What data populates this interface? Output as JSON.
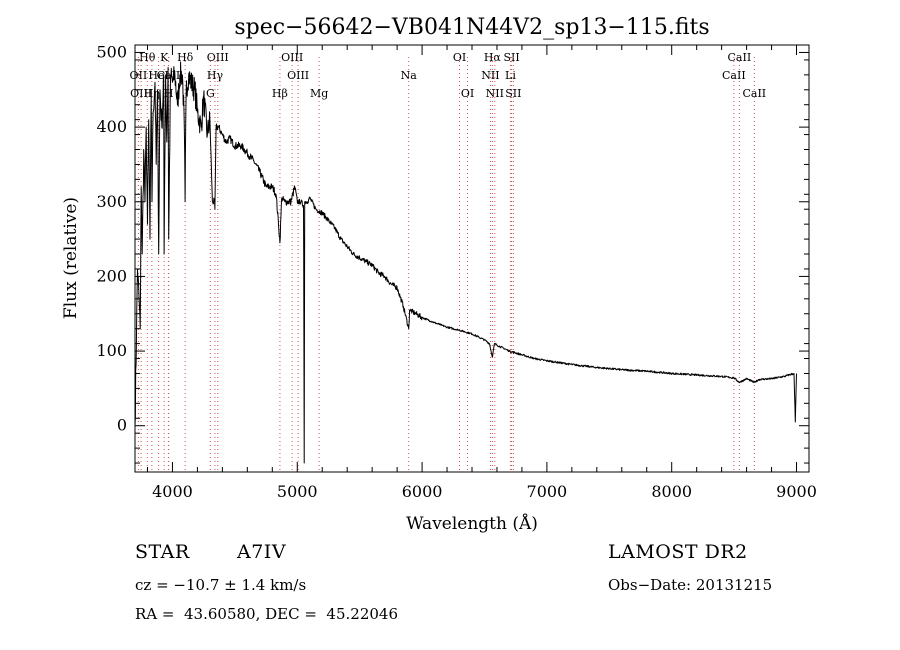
{
  "chart_data": {
    "type": "line",
    "title": "spec−56642−VB041N44V2_sp13−115.fits",
    "xlabel": "Wavelength (Å)",
    "ylabel": "Flux (relative)",
    "xlim": [
      3700,
      9100
    ],
    "ylim": [
      -62,
      510
    ],
    "x_ticks": [
      4000,
      5000,
      6000,
      7000,
      8000,
      9000
    ],
    "y_ticks": [
      0,
      100,
      200,
      300,
      400,
      500
    ],
    "grid": false,
    "series": [
      {
        "name": "spectrum",
        "x": [
          3700,
          3720,
          3735,
          3742,
          3750,
          3758,
          3770,
          3780,
          3790,
          3800,
          3810,
          3820,
          3830,
          3836,
          3845,
          3860,
          3870,
          3880,
          3890,
          3900,
          3915,
          3930,
          3933,
          3945,
          3955,
          3965,
          3970,
          3985,
          4000,
          4020,
          4040,
          4060,
          4080,
          4095,
          4101,
          4110,
          4130,
          4150,
          4180,
          4200,
          4230,
          4250,
          4280,
          4300,
          4320,
          4335,
          4340,
          4350,
          4370,
          4400,
          4430,
          4460,
          4500,
          4550,
          4600,
          4650,
          4700,
          4750,
          4800,
          4830,
          4850,
          4861,
          4875,
          4900,
          4950,
          4980,
          5000,
          5030,
          5050,
          5052,
          5056,
          5060,
          5080,
          5100,
          5150,
          5200,
          5250,
          5300,
          5350,
          5400,
          5450,
          5500,
          5550,
          5600,
          5650,
          5700,
          5750,
          5800,
          5850,
          5893,
          5900,
          5950,
          6000,
          6100,
          6200,
          6300,
          6400,
          6500,
          6540,
          6563,
          6580,
          6600,
          6700,
          6800,
          6900,
          7000,
          7200,
          7400,
          7600,
          7800,
          8000,
          8200,
          8400,
          8500,
          8542,
          8600,
          8662,
          8700,
          8800,
          8900,
          8980,
          8990,
          9000
        ],
        "values": [
          0,
          210,
          160,
          130,
          320,
          230,
          370,
          300,
          400,
          270,
          410,
          250,
          440,
          300,
          420,
          460,
          350,
          450,
          230,
          450,
          400,
          470,
          230,
          470,
          380,
          480,
          250,
          470,
          460,
          470,
          430,
          470,
          470,
          400,
          300,
          450,
          470,
          460,
          450,
          420,
          400,
          440,
          390,
          410,
          300,
          300,
          290,
          400,
          400,
          390,
          380,
          385,
          375,
          375,
          365,
          355,
          340,
          320,
          320,
          310,
          270,
          245,
          305,
          300,
          300,
          320,
          300,
          300,
          295,
          230,
          -50,
          300,
          300,
          305,
          290,
          285,
          275,
          265,
          250,
          240,
          230,
          225,
          220,
          215,
          205,
          200,
          190,
          185,
          160,
          130,
          155,
          150,
          145,
          138,
          132,
          128,
          123,
          115,
          110,
          92,
          110,
          108,
          100,
          95,
          90,
          87,
          82,
          78,
          75,
          73,
          70,
          68,
          66,
          64,
          58,
          63,
          58,
          62,
          63,
          66,
          70,
          5,
          70
        ]
      }
    ],
    "lines": [
      {
        "label": "Hθ",
        "x": 3798,
        "row": 0
      },
      {
        "label": "K",
        "x": 3934,
        "row": 0
      },
      {
        "label": "Hδ",
        "x": 4102,
        "row": 0
      },
      {
        "label": "OIII",
        "x": 4363,
        "row": 0
      },
      {
        "label": "OIII",
        "x": 4959,
        "row": 0
      },
      {
        "label": "OI",
        "x": 6300,
        "row": 0
      },
      {
        "label": "Hα",
        "x": 6563,
        "row": 0
      },
      {
        "label": "SII",
        "x": 6717,
        "row": 0
      },
      {
        "label": "CaII",
        "x": 8542,
        "row": 0
      },
      {
        "label": "OII",
        "x": 3727,
        "row": 1
      },
      {
        "label": "HeI",
        "x": 3889,
        "row": 1
      },
      {
        "label": "CaII",
        "x": 3968,
        "row": 1
      },
      {
        "label": "Hγ",
        "x": 4341,
        "row": 1
      },
      {
        "label": "OIII",
        "x": 5007,
        "row": 1
      },
      {
        "label": "Na",
        "x": 5893,
        "row": 1
      },
      {
        "label": "NII",
        "x": 6548,
        "row": 1
      },
      {
        "label": "Li",
        "x": 6708,
        "row": 1
      },
      {
        "label": "CaII",
        "x": 8498,
        "row": 1
      },
      {
        "label": "OIII",
        "x": 3749,
        "row": 2
      },
      {
        "label": "Hη",
        "x": 3835,
        "row": 2
      },
      {
        "label": "H",
        "x": 3970,
        "row": 2
      },
      {
        "label": "G",
        "x": 4304,
        "row": 2
      },
      {
        "label": "Hβ",
        "x": 4861,
        "row": 2
      },
      {
        "label": "Mg",
        "x": 5175,
        "row": 2
      },
      {
        "label": "OI",
        "x": 6364,
        "row": 2
      },
      {
        "label": "NII",
        "x": 6583,
        "row": 2
      },
      {
        "label": "SII",
        "x": 6731,
        "row": 2
      },
      {
        "label": "CaII",
        "x": 8662,
        "row": 2
      }
    ]
  },
  "info": {
    "object_class": "STAR",
    "subclass": "A7IV",
    "survey": "LAMOST DR2",
    "redshift": "cz = −10.7 ± 1.4 km/s",
    "obs_date": "Obs−Date: 20131215",
    "coords": "RA =  43.60580, DEC =  45.22046"
  }
}
